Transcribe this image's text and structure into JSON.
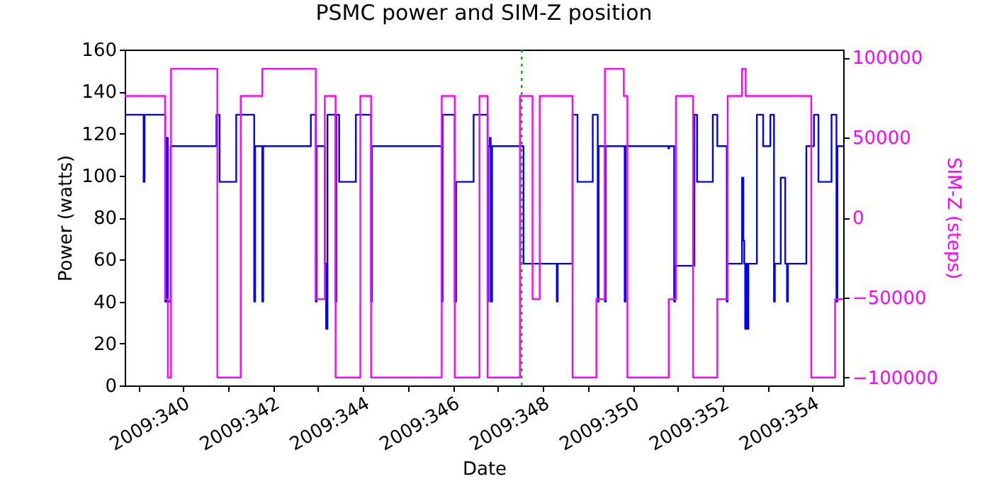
{
  "chart_data": {
    "type": "step",
    "title": "PSMC power and SIM-Z position",
    "xlabel": "Date",
    "ylabel": "Power (watts)",
    "y2label": "SIM-Z (steps)",
    "xlim": [
      "2009-12-04T16:48",
      "2009-12-20T16:19"
    ],
    "xticks": [
      {
        "value": "2009-12-05T00:00",
        "label": null
      },
      {
        "value": "2009-12-06T00:00",
        "label": "2009:340"
      },
      {
        "value": "2009-12-07T00:00",
        "label": null
      },
      {
        "value": "2009-12-08T00:00",
        "label": "2009:342"
      },
      {
        "value": "2009-12-09T00:00",
        "label": null
      },
      {
        "value": "2009-12-10T00:00",
        "label": "2009:344"
      },
      {
        "value": "2009-12-11T00:00",
        "label": null
      },
      {
        "value": "2009-12-12T00:00",
        "label": "2009:346"
      },
      {
        "value": "2009-12-13T00:00",
        "label": null
      },
      {
        "value": "2009-12-14T00:00",
        "label": "2009:348"
      },
      {
        "value": "2009-12-15T00:00",
        "label": null
      },
      {
        "value": "2009-12-16T00:00",
        "label": "2009:350"
      },
      {
        "value": "2009-12-17T00:00",
        "label": null
      },
      {
        "value": "2009-12-18T00:00",
        "label": "2009:352"
      },
      {
        "value": "2009-12-19T00:00",
        "label": null
      },
      {
        "value": "2009-12-20T00:00",
        "label": "2009:354"
      }
    ],
    "ylim": [
      0,
      160
    ],
    "yticks": [
      0,
      20,
      40,
      60,
      80,
      100,
      120,
      140,
      160
    ],
    "y2lim": [
      -105000,
      105000
    ],
    "y2ticks": [
      -100000,
      -50000,
      0,
      50000,
      100000
    ],
    "grid": false,
    "marker": "none",
    "ref_lines": [
      {
        "axis": "x",
        "value": "2009-12-13T12:43",
        "color": "#00aa00",
        "line_style": "dotted"
      }
    ],
    "series": [
      {
        "color": "#0000ff",
        "x": [
          "2009-12-04T16:48",
          "2009-12-05T02:53",
          "2009-12-05T03:22",
          "2009-12-05T14:24",
          "2009-12-05T15:07",
          "2009-12-05T15:50",
          "2009-12-05T17:17",
          "2009-12-06T17:46",
          "2009-12-06T19:26",
          "2009-12-07T04:19",
          "2009-12-07T13:55",
          "2009-12-07T14:24",
          "2009-12-07T18:14",
          "2009-12-07T18:43",
          "2009-12-08T20:10",
          "2009-12-08T22:48",
          "2009-12-08T23:17",
          "2009-12-09T03:36",
          "2009-12-09T04:19",
          "2009-12-09T05:02",
          "2009-12-09T09:22",
          "2009-12-09T09:50",
          "2009-12-09T11:17",
          "2009-12-09T20:10",
          "2009-12-10T04:19",
          "2009-12-10T04:48",
          "2009-12-11T18:00",
          "2009-12-11T18:29",
          "2009-12-12T00:58",
          "2009-12-12T01:41",
          "2009-12-12T11:02",
          "2009-12-12T18:29",
          "2009-12-12T18:58",
          "2009-12-12T19:41",
          "2009-12-12T20:10",
          "2009-12-12T20:53",
          "2009-12-13T13:41",
          "2009-12-14T07:26",
          "2009-12-14T07:55",
          "2009-12-14T15:50",
          "2009-12-14T18:29",
          "2009-12-15T02:38",
          "2009-12-15T05:17",
          "2009-12-15T05:46",
          "2009-12-15T09:07",
          "2009-12-15T09:36",
          "2009-12-15T19:41",
          "2009-12-15T20:10",
          "2009-12-16T18:58",
          "2009-12-16T19:26",
          "2009-12-16T22:05",
          "2009-12-16T22:34",
          "2009-12-17T08:53",
          "2009-12-17T10:19",
          "2009-12-17T18:43",
          "2009-12-17T21:07",
          "2009-12-18T02:10",
          "2009-12-18T02:38",
          "2009-12-18T10:19",
          "2009-12-18T11:02",
          "2009-12-18T11:31",
          "2009-12-18T12:00",
          "2009-12-18T12:43",
          "2009-12-18T13:12",
          "2009-12-18T13:41",
          "2009-12-18T18:14",
          "2009-12-18T21:36",
          "2009-12-19T01:26",
          "2009-12-19T03:22",
          "2009-12-19T03:50",
          "2009-12-19T06:58",
          "2009-12-19T09:22",
          "2009-12-19T10:19",
          "2009-12-19T10:48",
          "2009-12-19T20:38",
          "2009-12-20T00:43",
          "2009-12-20T03:07",
          "2009-12-20T10:05",
          "2009-12-20T12:43",
          "2009-12-20T13:12",
          "2009-12-20T16:19"
        ],
        "values": [
          129,
          97,
          129,
          40,
          118,
          40,
          114,
          129,
          97,
          129,
          40,
          114,
          40,
          114,
          129,
          40,
          114,
          58,
          27,
          129,
          40,
          129,
          97,
          129,
          40,
          114,
          40,
          129,
          40,
          97,
          129,
          40,
          114,
          118,
          40,
          114,
          58,
          40,
          58,
          129,
          97,
          129,
          40,
          114,
          40,
          114,
          40,
          114,
          113,
          114,
          40,
          57,
          129,
          97,
          129,
          114,
          40,
          58,
          99,
          69,
          58,
          27,
          58,
          27,
          58,
          129,
          114,
          129,
          40,
          58,
          99,
          58,
          40,
          58,
          114,
          129,
          97,
          129,
          40,
          114,
          114
        ]
      },
      {
        "color": "#ff00ff",
        "axis": "y2",
        "x": [
          "2009-12-04T16:48",
          "2009-12-05T14:24",
          "2009-12-05T15:50",
          "2009-12-05T17:31",
          "2009-12-06T18:14",
          "2009-12-07T06:43",
          "2009-12-07T18:14",
          "2009-12-08T22:48",
          "2009-12-09T03:36",
          "2009-12-09T09:22",
          "2009-12-09T22:34",
          "2009-12-10T04:19",
          "2009-12-11T18:00",
          "2009-12-12T00:58",
          "2009-12-12T14:10",
          "2009-12-12T18:29",
          "2009-12-13T11:46",
          "2009-12-13T18:29",
          "2009-12-13T22:19",
          "2009-12-14T15:50",
          "2009-12-15T04:34",
          "2009-12-15T09:07",
          "2009-12-15T19:12",
          "2009-12-15T21:07",
          "2009-12-16T19:12",
          "2009-12-16T23:02",
          "2009-12-17T08:10",
          "2009-12-17T21:07",
          "2009-12-18T02:38",
          "2009-12-18T10:19",
          "2009-12-18T12:14",
          "2009-12-19T23:17",
          "2009-12-20T12:00",
          "2009-12-20T16:19"
        ],
        "values": [
          76000,
          -51000,
          -100000,
          93000,
          -100000,
          76000,
          93000,
          -51000,
          76000,
          -100000,
          76000,
          -100000,
          76000,
          -100000,
          76000,
          -100000,
          76000,
          -51000,
          76000,
          -100000,
          -51000,
          93000,
          76000,
          -100000,
          -51000,
          76000,
          -100000,
          -51000,
          76000,
          93000,
          76000,
          -100000,
          -51000,
          -51000
        ]
      }
    ]
  }
}
